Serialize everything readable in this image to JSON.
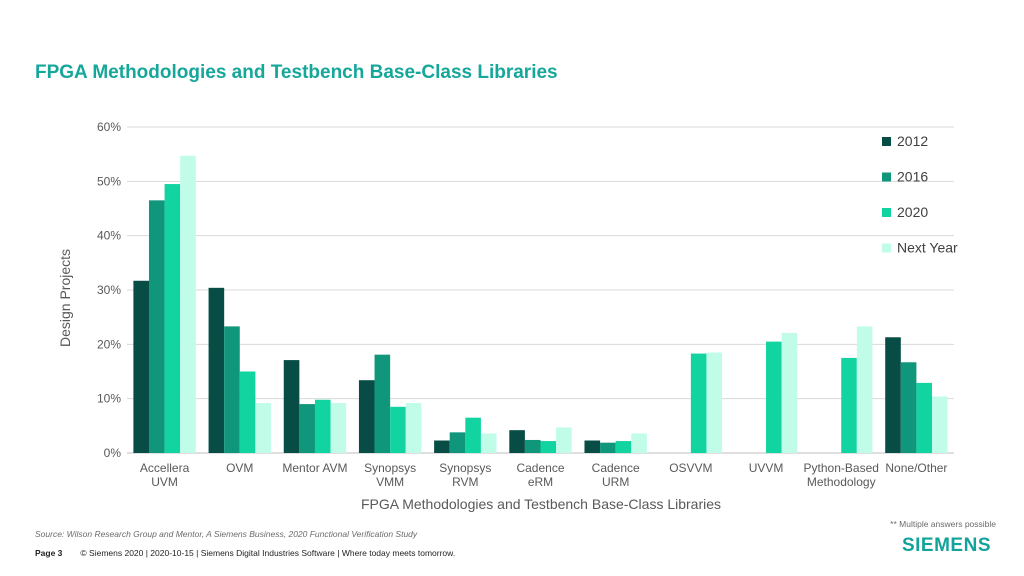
{
  "page": {
    "title": "FPGA Methodologies and Testbench Base-Class Libraries",
    "source": "Source:  Wilson Research Group and Mentor,  A Siemens Business, 2020 Functional Verification Study",
    "note": "** Multiple answers possible",
    "footer_page": "Page 3",
    "footer_text": "© Siemens 2020 | 2020-10-15 | Siemens Digital Industries Software | Where today meets tomorrow.",
    "logo": "SIEMENS"
  },
  "chart_data": {
    "type": "bar",
    "title": "",
    "xlabel": "FPGA Methodologies and Testbench Base-Class Libraries",
    "ylabel": "Design Projects",
    "ylim": [
      0,
      60
    ],
    "yticks": [
      "0%",
      "10%",
      "20%",
      "30%",
      "40%",
      "50%",
      "60%"
    ],
    "grid": true,
    "legend_position": "right",
    "categories": [
      [
        "Accellera",
        "UVM"
      ],
      [
        "OVM"
      ],
      [
        "Mentor AVM"
      ],
      [
        "Synopsys",
        "VMM"
      ],
      [
        "Synopsys",
        "RVM"
      ],
      [
        "Cadence",
        "eRM"
      ],
      [
        "Cadence",
        "URM"
      ],
      [
        "OSVVM"
      ],
      [
        "UVVM"
      ],
      [
        "Python-Based",
        "Methodology"
      ],
      [
        "None/Other"
      ]
    ],
    "series": [
      {
        "name": "2012",
        "color": "#074c45",
        "values": [
          31.7,
          30.4,
          17.1,
          13.4,
          2.3,
          4.2,
          2.3,
          null,
          null,
          null,
          21.3
        ]
      },
      {
        "name": "2016",
        "color": "#10967a",
        "values": [
          46.5,
          23.3,
          9.0,
          18.1,
          3.8,
          2.4,
          1.9,
          null,
          null,
          null,
          16.7
        ]
      },
      {
        "name": "2020",
        "color": "#12d4a0",
        "values": [
          49.5,
          15.0,
          9.8,
          8.5,
          6.5,
          2.2,
          2.2,
          18.3,
          20.5,
          17.5,
          12.9
        ]
      },
      {
        "name": "Next Year",
        "color": "#c1fce9",
        "values": [
          54.7,
          9.2,
          9.2,
          9.2,
          3.6,
          4.7,
          3.6,
          18.5,
          22.1,
          23.3,
          10.4
        ]
      }
    ]
  }
}
